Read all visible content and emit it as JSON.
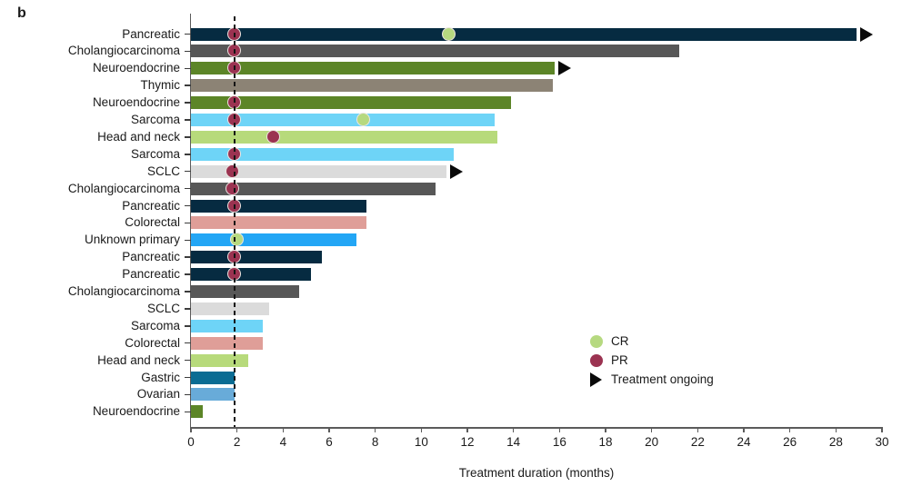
{
  "panel_label": "b",
  "colors": {
    "pancreatic": "#062B41",
    "cholangiocarcinoma": "#575757",
    "neuroendocrine": "#5C8527",
    "thymic": "#8C8375",
    "sarcoma": "#6ED4F7",
    "head_and_neck": "#B7DA7B",
    "sclc": "#DBDBDB",
    "colorectal": "#DF9E98",
    "unknown_primary": "#23A6F5",
    "gastric": "#0A6C93",
    "ovarian": "#68ABD9",
    "cr": "#B6D980",
    "pr": "#9B3351",
    "ongoing_arrow": "#0A0A0A",
    "axis": "#5B5B5B"
  },
  "chart_data": {
    "type": "bar",
    "orientation": "horizontal",
    "xlabel": "Treatment duration (months)",
    "xlim": [
      0,
      30
    ],
    "xticks": [
      0,
      2,
      4,
      6,
      8,
      10,
      12,
      14,
      16,
      18,
      20,
      22,
      24,
      26,
      28,
      30
    ],
    "reference_line_x": 1.9,
    "legend_position": "inside-right",
    "grid": false,
    "rows": [
      {
        "label": "Pancreatic",
        "color": "pancreatic",
        "duration": 28.9,
        "ongoing": true,
        "markers": [
          {
            "type": "PR",
            "x": 1.9
          },
          {
            "type": "CR",
            "x": 11.2
          }
        ]
      },
      {
        "label": "Cholangiocarcinoma",
        "color": "cholangiocarcinoma",
        "duration": 21.2,
        "ongoing": false,
        "markers": [
          {
            "type": "PR",
            "x": 1.9
          }
        ]
      },
      {
        "label": "Neuroendocrine",
        "color": "neuroendocrine",
        "duration": 15.8,
        "ongoing": true,
        "markers": [
          {
            "type": "PR",
            "x": 1.9
          }
        ]
      },
      {
        "label": "Thymic",
        "color": "thymic",
        "duration": 15.7,
        "ongoing": false,
        "markers": []
      },
      {
        "label": "Neuroendocrine",
        "color": "neuroendocrine",
        "duration": 13.9,
        "ongoing": false,
        "markers": [
          {
            "type": "PR",
            "x": 1.9
          }
        ]
      },
      {
        "label": "Sarcoma",
        "color": "sarcoma",
        "duration": 13.2,
        "ongoing": false,
        "markers": [
          {
            "type": "PR",
            "x": 1.9
          },
          {
            "type": "CR",
            "x": 7.5
          }
        ]
      },
      {
        "label": "Head and neck",
        "color": "head_and_neck",
        "duration": 13.3,
        "ongoing": false,
        "markers": [
          {
            "type": "PR",
            "x": 3.6
          }
        ]
      },
      {
        "label": "Sarcoma",
        "color": "sarcoma",
        "duration": 11.4,
        "ongoing": false,
        "markers": [
          {
            "type": "PR",
            "x": 1.9
          }
        ]
      },
      {
        "label": "SCLC",
        "color": "sclc",
        "duration": 11.1,
        "ongoing": true,
        "markers": [
          {
            "type": "PR",
            "x": 1.8
          }
        ]
      },
      {
        "label": "Cholangiocarcinoma",
        "color": "cholangiocarcinoma",
        "duration": 10.6,
        "ongoing": false,
        "markers": [
          {
            "type": "PR",
            "x": 1.8
          }
        ]
      },
      {
        "label": "Pancreatic",
        "color": "pancreatic",
        "duration": 7.6,
        "ongoing": false,
        "markers": [
          {
            "type": "PR",
            "x": 1.9
          }
        ]
      },
      {
        "label": "Colorectal",
        "color": "colorectal",
        "duration": 7.6,
        "ongoing": false,
        "markers": []
      },
      {
        "label": "Unknown primary",
        "color": "unknown_primary",
        "duration": 7.2,
        "ongoing": false,
        "markers": [
          {
            "type": "CR",
            "x": 2.0
          }
        ]
      },
      {
        "label": "Pancreatic",
        "color": "pancreatic",
        "duration": 5.7,
        "ongoing": false,
        "markers": [
          {
            "type": "PR",
            "x": 1.9
          }
        ]
      },
      {
        "label": "Pancreatic",
        "color": "pancreatic",
        "duration": 5.2,
        "ongoing": false,
        "markers": [
          {
            "type": "PR",
            "x": 1.9
          }
        ]
      },
      {
        "label": "Cholangiocarcinoma",
        "color": "cholangiocarcinoma",
        "duration": 4.7,
        "ongoing": false,
        "markers": []
      },
      {
        "label": "SCLC",
        "color": "sclc",
        "duration": 3.4,
        "ongoing": false,
        "markers": []
      },
      {
        "label": "Sarcoma",
        "color": "sarcoma",
        "duration": 3.1,
        "ongoing": false,
        "markers": []
      },
      {
        "label": "Colorectal",
        "color": "colorectal",
        "duration": 3.1,
        "ongoing": false,
        "markers": []
      },
      {
        "label": "Head and neck",
        "color": "head_and_neck",
        "duration": 2.5,
        "ongoing": false,
        "markers": []
      },
      {
        "label": "Gastric",
        "color": "gastric",
        "duration": 1.9,
        "ongoing": false,
        "markers": []
      },
      {
        "label": "Ovarian",
        "color": "ovarian",
        "duration": 1.9,
        "ongoing": false,
        "markers": []
      },
      {
        "label": "Neuroendocrine",
        "color": "neuroendocrine",
        "duration": 0.5,
        "ongoing": false,
        "markers": []
      }
    ],
    "legend": [
      {
        "id": "cr",
        "label": "CR"
      },
      {
        "id": "pr",
        "label": "PR"
      },
      {
        "id": "ongoing",
        "label": "Treatment ongoing"
      }
    ]
  }
}
